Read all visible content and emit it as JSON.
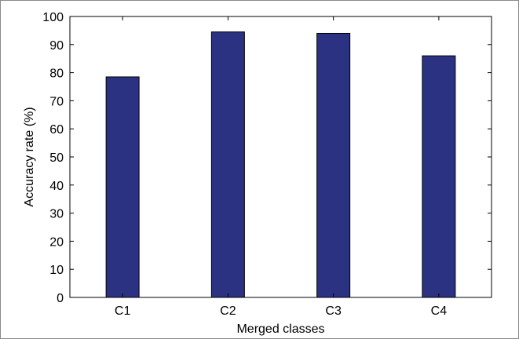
{
  "chart_data": {
    "type": "bar",
    "categories": [
      "C1",
      "C2",
      "C3",
      "C4"
    ],
    "values": [
      78.5,
      94.5,
      94.0,
      86.0
    ],
    "xlabel": "Merged classes",
    "ylabel": "Accuracy rate (%)",
    "ylim": [
      0,
      100
    ],
    "yticks": [
      "0",
      "10",
      "20",
      "30",
      "40",
      "50",
      "60",
      "70",
      "80",
      "90",
      "100"
    ],
    "grid": false,
    "legend": false,
    "colors": {
      "bar_fill": "#2b3282",
      "bar_edge": "#000000",
      "axis": "#000000"
    }
  }
}
